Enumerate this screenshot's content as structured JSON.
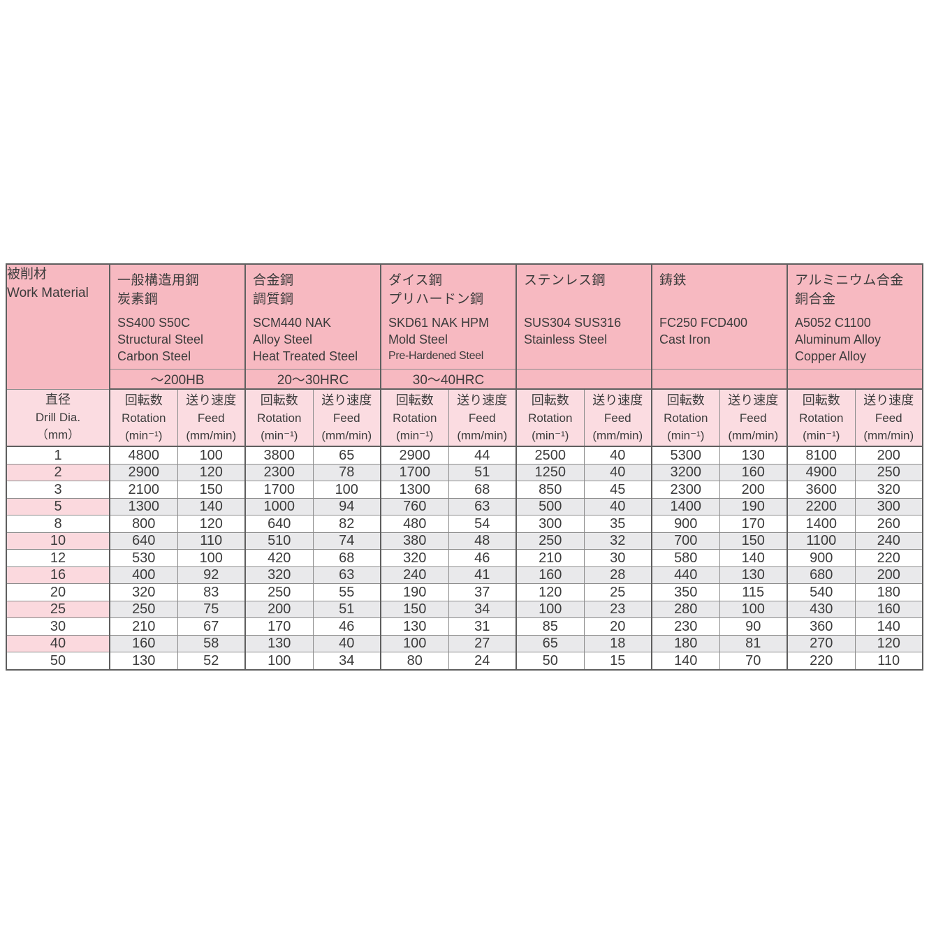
{
  "colors": {
    "header_pink": "#f7b9c1",
    "subheader_pink": "#fbdce1",
    "row_alt_pink": "#fbd9de",
    "row_alt_gray": "#e9e9eb",
    "border_light": "#8c8c8c",
    "border_heavy": "#5f5f5f",
    "text": "#3c3c3c"
  },
  "table": {
    "work_material": {
      "jp": "被削材",
      "en": "Work Material"
    },
    "materials": [
      {
        "jp1": "一般構造用鋼",
        "jp2": "炭素鋼",
        "spec1": "SS400 S50C",
        "spec2": "Structural Steel",
        "spec3": "Carbon Steel",
        "spec3_small": false,
        "hardness": "～200HB"
      },
      {
        "jp1": "合金鋼",
        "jp2": "調質鋼",
        "spec1": "SCM440 NAK",
        "spec2": "Alloy Steel",
        "spec3": "Heat Treated Steel",
        "spec3_small": false,
        "hardness": "20～30HRC"
      },
      {
        "jp1": "ダイス鋼",
        "jp2": "プリハードン鋼",
        "spec1": "SKD61 NAK HPM",
        "spec2": "Mold Steel",
        "spec3": "Pre-Hardened Steel",
        "spec3_small": true,
        "hardness": "30～40HRC"
      },
      {
        "jp1": "ステンレス鋼",
        "jp2": "",
        "spec1": "SUS304 SUS316",
        "spec2": "Stainless Steel",
        "spec3": "",
        "spec3_small": false,
        "hardness": ""
      },
      {
        "jp1": "鋳鉄",
        "jp2": "",
        "spec1": "FC250  FCD400",
        "spec2": "Cast Iron",
        "spec3": "",
        "spec3_small": false,
        "hardness": ""
      },
      {
        "jp1": "アルミニウム合金",
        "jp2": "銅合金",
        "spec1": "A5052 C1100",
        "spec2": "Aluminum Alloy",
        "spec3": "Copper Alloy",
        "spec3_small": false,
        "hardness": ""
      }
    ],
    "subheader": {
      "dia": {
        "jp": "直径",
        "en": "Drill Dia.",
        "unit": "（mm）"
      },
      "rotation": {
        "jp": "回転数",
        "en": "Rotation",
        "unit": "(min⁻¹)"
      },
      "feed": {
        "jp": "送り速度",
        "en": "Feed",
        "unit": "(mm/min)"
      }
    },
    "rows": [
      {
        "dia": "1",
        "values": [
          "4800",
          "100",
          "3800",
          "65",
          "2900",
          "44",
          "2500",
          "40",
          "5300",
          "130",
          "8100",
          "200"
        ]
      },
      {
        "dia": "2",
        "values": [
          "2900",
          "120",
          "2300",
          "78",
          "1700",
          "51",
          "1250",
          "40",
          "3200",
          "160",
          "4900",
          "250"
        ]
      },
      {
        "dia": "3",
        "values": [
          "2100",
          "150",
          "1700",
          "100",
          "1300",
          "68",
          "850",
          "45",
          "2300",
          "200",
          "3600",
          "320"
        ]
      },
      {
        "dia": "5",
        "values": [
          "1300",
          "140",
          "1000",
          "94",
          "760",
          "63",
          "500",
          "40",
          "1400",
          "190",
          "2200",
          "300"
        ]
      },
      {
        "dia": "8",
        "values": [
          "800",
          "120",
          "640",
          "82",
          "480",
          "54",
          "300",
          "35",
          "900",
          "170",
          "1400",
          "260"
        ]
      },
      {
        "dia": "10",
        "values": [
          "640",
          "110",
          "510",
          "74",
          "380",
          "48",
          "250",
          "32",
          "700",
          "150",
          "1100",
          "240"
        ]
      },
      {
        "dia": "12",
        "values": [
          "530",
          "100",
          "420",
          "68",
          "320",
          "46",
          "210",
          "30",
          "580",
          "140",
          "900",
          "220"
        ]
      },
      {
        "dia": "16",
        "values": [
          "400",
          "92",
          "320",
          "63",
          "240",
          "41",
          "160",
          "28",
          "440",
          "130",
          "680",
          "200"
        ]
      },
      {
        "dia": "20",
        "values": [
          "320",
          "83",
          "250",
          "55",
          "190",
          "37",
          "120",
          "25",
          "350",
          "115",
          "540",
          "180"
        ]
      },
      {
        "dia": "25",
        "values": [
          "250",
          "75",
          "200",
          "51",
          "150",
          "34",
          "100",
          "23",
          "280",
          "100",
          "430",
          "160"
        ]
      },
      {
        "dia": "30",
        "values": [
          "210",
          "67",
          "170",
          "46",
          "130",
          "31",
          "85",
          "20",
          "230",
          "90",
          "360",
          "140"
        ]
      },
      {
        "dia": "40",
        "values": [
          "160",
          "58",
          "130",
          "40",
          "100",
          "27",
          "65",
          "18",
          "180",
          "81",
          "270",
          "120"
        ]
      },
      {
        "dia": "50",
        "values": [
          "130",
          "52",
          "100",
          "34",
          "80",
          "24",
          "50",
          "15",
          "140",
          "70",
          "220",
          "110"
        ]
      }
    ]
  }
}
